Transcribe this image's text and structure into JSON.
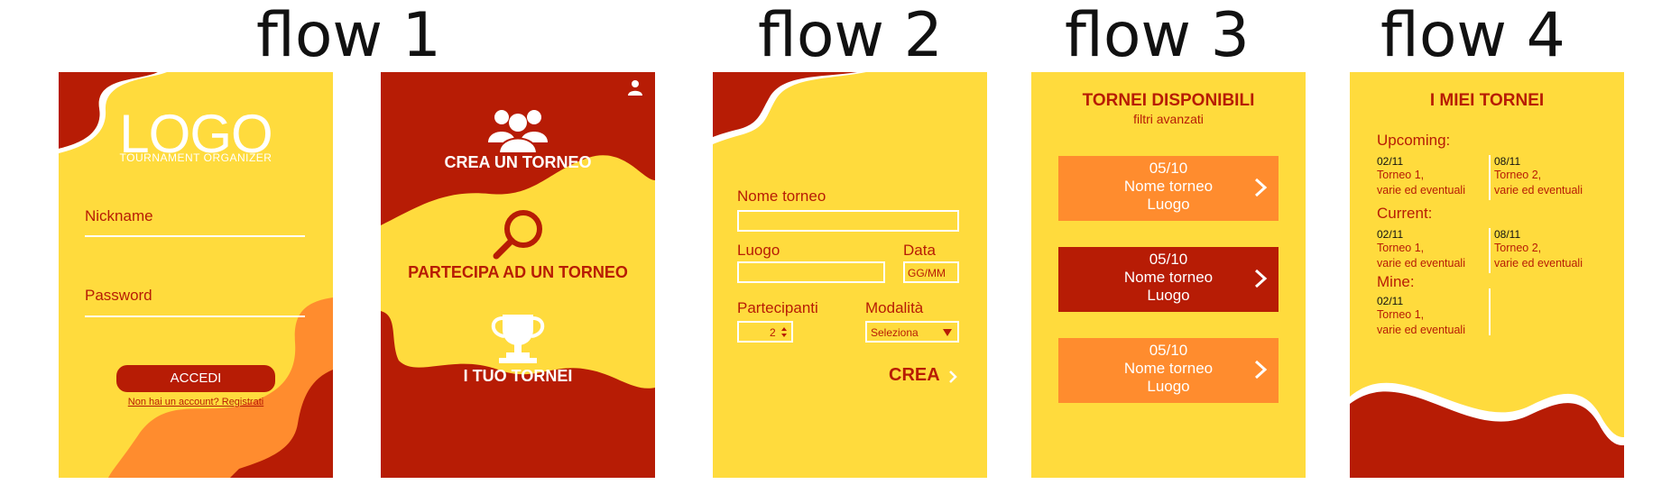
{
  "flows": [
    {
      "title": "flow 1"
    },
    {
      "title": "flow 2"
    },
    {
      "title": "flow 3"
    },
    {
      "title": "flow 4"
    }
  ],
  "login": {
    "logo": "LOGO",
    "logo_subtitle": "TOURNAMENT ORGANIZER",
    "nickname_label": "Nickname",
    "password_label": "Password",
    "login_button": "ACCEDI",
    "register_link": "Non hai un account? Registrati"
  },
  "menu": {
    "create_label": "CREA UN TORNEO",
    "join_label": "PARTECIPA AD UN TORNEO",
    "my_label": "I TUO TORNEI",
    "icons": [
      "user-icon",
      "group-icon",
      "search-icon",
      "trophy-icon"
    ]
  },
  "create_form": {
    "name_label": "Nome torneo",
    "place_label": "Luogo",
    "date_label": "Data",
    "date_placeholder": "GG/MM",
    "participants_label": "Partecipanti",
    "participants_value": "2",
    "mode_label": "Modalità",
    "mode_value": "Seleziona",
    "create_button": "CREA"
  },
  "available": {
    "title": "TORNEI DISPONIBILI",
    "filters": "filtri avanzati",
    "cards": [
      {
        "date": "05/10",
        "name": "Nome torneo",
        "place": "Luogo",
        "color": "#FF8C2E"
      },
      {
        "date": "05/10",
        "name": "Nome torneo",
        "place": "Luogo",
        "color": "#B71C05"
      },
      {
        "date": "05/10",
        "name": "Nome torneo",
        "place": "Luogo",
        "color": "#FF8C2E"
      }
    ]
  },
  "mine": {
    "title": "I MIEI TORNEI",
    "sections": [
      {
        "label": "Upcoming:",
        "items": [
          {
            "date": "02/11",
            "line1": "Torneo 1,",
            "line2": "varie ed eventuali"
          },
          {
            "date": "08/11",
            "line1": "Torneo 2,",
            "line2": "varie ed eventuali"
          }
        ]
      },
      {
        "label": "Current:",
        "items": [
          {
            "date": "02/11",
            "line1": "Torneo 1,",
            "line2": "varie ed eventuali"
          },
          {
            "date": "08/11",
            "line1": "Torneo 2,",
            "line2": "varie ed eventuali"
          }
        ]
      },
      {
        "label": "Mine:",
        "items": [
          {
            "date": "02/11",
            "line1": "Torneo 1,",
            "line2": "varie ed eventuali"
          }
        ]
      }
    ]
  },
  "colors": {
    "yellow": "#FFDB3D",
    "red": "#B71C05",
    "orange": "#FF8C2E"
  }
}
